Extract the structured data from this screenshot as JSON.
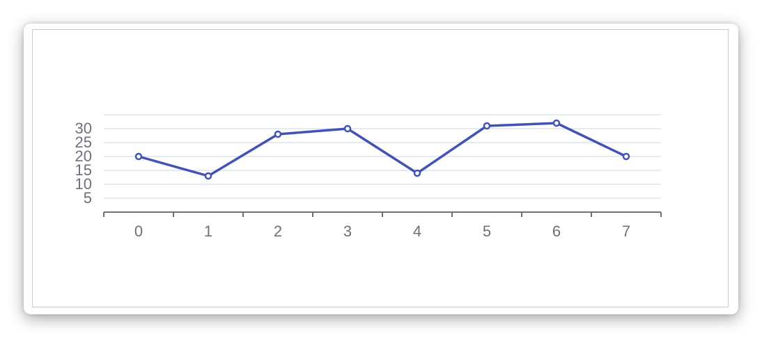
{
  "chart_data": {
    "type": "line",
    "x": [
      0,
      1,
      2,
      3,
      4,
      5,
      6,
      7
    ],
    "x_tick_labels": [
      "0",
      "1",
      "2",
      "3",
      "4",
      "5",
      "6",
      "7"
    ],
    "series": [
      {
        "values": [
          20,
          13,
          28,
          30,
          14,
          31,
          32,
          20
        ]
      }
    ],
    "y_tick_labels": [
      "5",
      "10",
      "15",
      "20",
      "25",
      "30"
    ],
    "ylim": [
      0,
      35
    ],
    "grid": true,
    "colors": {
      "line": "#4353b3",
      "grid": "#dbe3ee",
      "axis": "#6e7079",
      "tick_text": "#6e7079"
    },
    "title": "",
    "xlabel": "",
    "ylabel": ""
  }
}
